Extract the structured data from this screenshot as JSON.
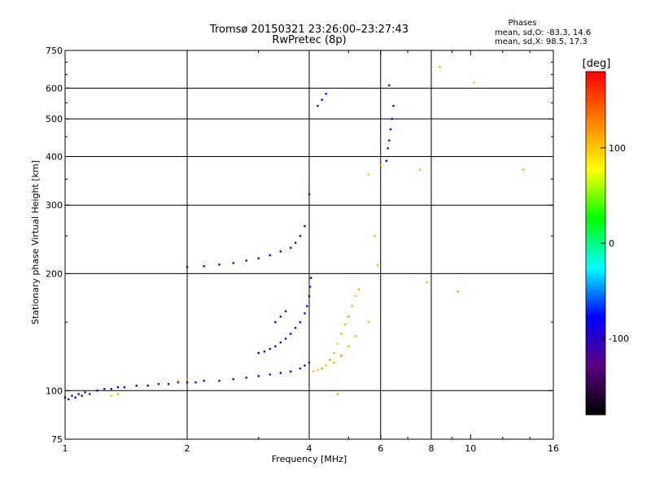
{
  "header": {
    "title": "Tromsø 20150321 23:26:00–23:27:43",
    "subtitle": "RwPretec (8p)",
    "stats_heading": "Phases",
    "stats_o": "mean, sd,O: -83.3, 14.6",
    "stats_x": "mean, sd,X:  98.5, 17.3"
  },
  "chart_data": {
    "type": "scatter",
    "xlabel": "Frequency [MHz]",
    "ylabel": "Stationary phase Virtual Height [km]",
    "xscale": "log",
    "yscale": "log",
    "xlim": [
      1,
      16
    ],
    "ylim": [
      75,
      750
    ],
    "xticks": [
      1,
      2,
      4,
      6,
      8,
      10,
      16
    ],
    "xtick_labels": [
      "1",
      "2",
      "4",
      "6",
      "8",
      "10",
      "16"
    ],
    "x_gridlines": [
      2,
      4,
      6,
      8
    ],
    "yticks": [
      75,
      100,
      200,
      300,
      400,
      500,
      600,
      750
    ],
    "ytick_labels": [
      "75",
      "100",
      "200",
      "300",
      "400",
      "500",
      "600",
      "750"
    ],
    "y_gridlines": [
      100,
      200,
      300,
      400,
      500,
      600
    ],
    "grid": true,
    "colorbar": {
      "label": "[deg]",
      "range": [
        -180,
        180
      ],
      "ticks": [
        100,
        0,
        -100
      ],
      "tick_labels": [
        "100",
        "0",
        "-100"
      ],
      "colormap": "rainbow",
      "stops": [
        "#000000",
        "#5a0080",
        "#0000ff",
        "#00ffff",
        "#00ff00",
        "#ffff00",
        "#ff8000",
        "#ff0000"
      ]
    },
    "series": [
      {
        "points": [
          [
            1.0,
            96
          ],
          [
            1.02,
            95
          ],
          [
            1.04,
            97
          ],
          [
            1.06,
            96
          ],
          [
            1.08,
            98
          ],
          [
            1.1,
            97
          ],
          [
            1.12,
            99
          ],
          [
            1.15,
            98
          ],
          [
            1.2,
            100
          ],
          [
            1.25,
            101
          ],
          [
            1.3,
            101
          ],
          [
            1.35,
            102
          ],
          [
            1.4,
            102
          ],
          [
            1.5,
            103
          ],
          [
            1.6,
            103
          ],
          [
            1.7,
            104
          ],
          [
            1.8,
            104
          ],
          [
            1.9,
            105
          ],
          [
            2.0,
            105
          ],
          [
            2.1,
            105
          ],
          [
            2.2,
            106
          ],
          [
            2.4,
            106
          ],
          [
            2.6,
            107
          ],
          [
            2.8,
            108
          ],
          [
            3.0,
            109
          ],
          [
            3.2,
            110
          ],
          [
            3.4,
            111
          ],
          [
            3.6,
            112
          ],
          [
            3.8,
            114
          ],
          [
            3.9,
            116
          ],
          [
            4.0,
            118
          ],
          [
            3.0,
            125
          ],
          [
            3.1,
            126
          ],
          [
            3.2,
            128
          ],
          [
            3.3,
            130
          ],
          [
            3.4,
            133
          ],
          [
            3.5,
            136
          ],
          [
            3.6,
            140
          ],
          [
            3.7,
            145
          ],
          [
            3.8,
            150
          ],
          [
            3.9,
            158
          ],
          [
            3.95,
            165
          ],
          [
            4.0,
            175
          ],
          [
            4.02,
            185
          ],
          [
            4.04,
            195
          ],
          [
            3.3,
            150
          ],
          [
            3.4,
            155
          ],
          [
            3.5,
            160
          ],
          [
            2.0,
            208
          ],
          [
            2.2,
            209
          ],
          [
            2.4,
            211
          ],
          [
            2.6,
            213
          ],
          [
            2.8,
            216
          ],
          [
            3.0,
            219
          ],
          [
            3.2,
            223
          ],
          [
            3.4,
            228
          ],
          [
            3.6,
            233
          ],
          [
            3.7,
            240
          ],
          [
            3.8,
            250
          ],
          [
            3.9,
            265
          ],
          [
            4.0,
            320
          ],
          [
            4.2,
            540
          ],
          [
            4.3,
            560
          ],
          [
            4.4,
            580
          ],
          [
            6.2,
            390
          ],
          [
            6.25,
            420
          ],
          [
            6.3,
            440
          ],
          [
            6.35,
            470
          ],
          [
            6.4,
            500
          ],
          [
            6.45,
            540
          ],
          [
            6.3,
            610
          ]
        ]
      },
      {
        "points": [
          [
            1.3,
            97
          ],
          [
            1.35,
            98
          ],
          [
            1.9,
            106
          ],
          [
            2.0,
            107
          ],
          [
            4.1,
            112
          ],
          [
            4.2,
            113
          ],
          [
            4.3,
            114
          ],
          [
            4.4,
            116
          ],
          [
            4.5,
            120
          ],
          [
            4.6,
            125
          ],
          [
            4.7,
            132
          ],
          [
            4.8,
            140
          ],
          [
            4.9,
            148
          ],
          [
            5.0,
            155
          ],
          [
            5.1,
            165
          ],
          [
            5.2,
            175
          ],
          [
            5.3,
            182
          ],
          [
            4.6,
            118
          ],
          [
            4.8,
            123
          ],
          [
            5.0,
            130
          ],
          [
            5.2,
            138
          ],
          [
            4.7,
            98
          ],
          [
            5.6,
            150
          ],
          [
            5.6,
            360
          ],
          [
            5.8,
            250
          ],
          [
            5.9,
            210
          ],
          [
            6.0,
            380
          ],
          [
            8.4,
            680
          ],
          [
            10.2,
            620
          ],
          [
            13.5,
            370
          ],
          [
            7.5,
            370
          ],
          [
            9.3,
            180
          ],
          [
            7.8,
            190
          ]
        ]
      }
    ]
  }
}
